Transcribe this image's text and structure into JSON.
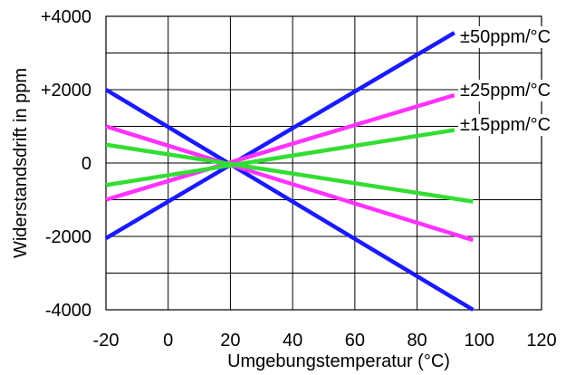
{
  "chart_data": {
    "type": "line",
    "xlabel": "Umgebungstemperatur (°C)",
    "ylabel": "Widerstandsdrift in ppm",
    "xlim": [
      -20,
      120
    ],
    "ylim": [
      -4000,
      4000
    ],
    "x_ticks": [
      -20,
      0,
      20,
      40,
      60,
      80,
      100,
      120
    ],
    "x_tick_labels": [
      "-20",
      "0",
      "20",
      "40",
      "60",
      "80",
      "100",
      "120"
    ],
    "y_ticks": [
      -4000,
      -2000,
      0,
      2000,
      4000
    ],
    "y_tick_labels": [
      "-4000",
      "-2000",
      "0",
      "+2000",
      "+4000"
    ],
    "grid": true,
    "series_labels": [
      {
        "text": "±50ppm/°C",
        "color": "#1a1aff"
      },
      {
        "text": "±25ppm/°C",
        "color": "#ff33ff"
      },
      {
        "text": "±15ppm/°C",
        "color": "#33dd33"
      }
    ],
    "series": [
      {
        "color": "#1a1aff",
        "points": [
          [
            -20,
            -2050
          ],
          [
            92,
            3550
          ]
        ]
      },
      {
        "color": "#1a1aff",
        "points": [
          [
            -20,
            2000
          ],
          [
            98,
            -4000
          ]
        ]
      },
      {
        "color": "#ff33ff",
        "points": [
          [
            -20,
            -1000
          ],
          [
            92,
            1850
          ]
        ]
      },
      {
        "color": "#ff33ff",
        "points": [
          [
            -20,
            1000
          ],
          [
            98,
            -2100
          ]
        ]
      },
      {
        "color": "#33dd33",
        "points": [
          [
            -20,
            -600
          ],
          [
            92,
            900
          ]
        ]
      },
      {
        "color": "#33dd33",
        "points": [
          [
            -20,
            500
          ],
          [
            98,
            -1050
          ]
        ]
      }
    ]
  }
}
